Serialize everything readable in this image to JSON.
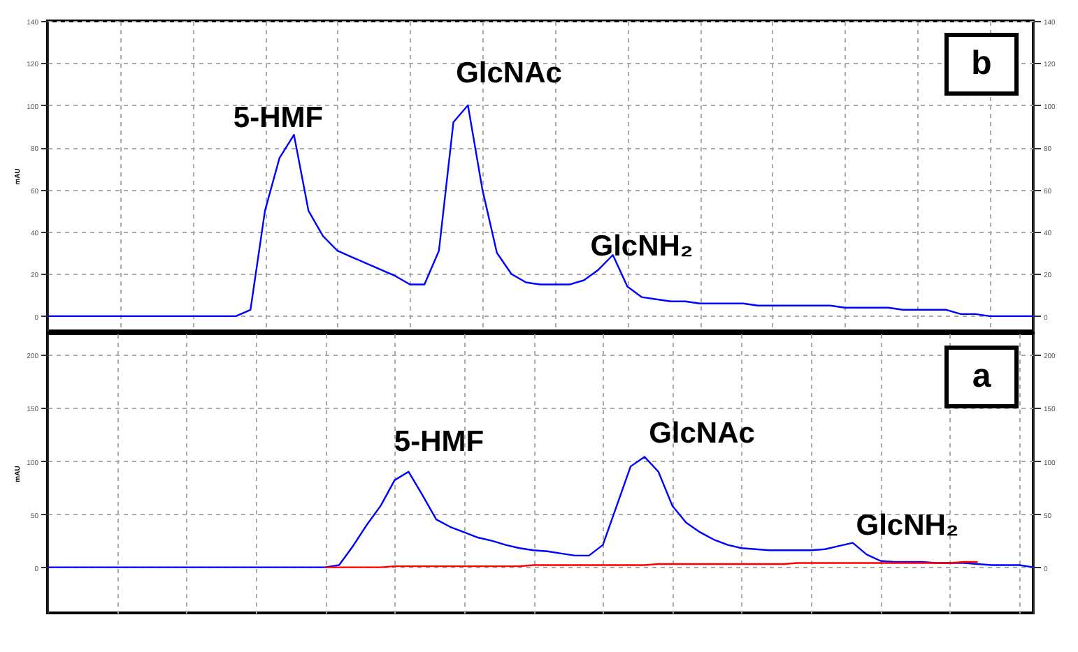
{
  "chart_data": [
    {
      "type": "line",
      "title": "b",
      "ylabel": "mAU",
      "categories": [
        null,
        null,
        null,
        null,
        null,
        null,
        null,
        null,
        null,
        null,
        null,
        null,
        null,
        null,
        null,
        null,
        null,
        null,
        null,
        null,
        null,
        null,
        null,
        null,
        null,
        null,
        null,
        null,
        null,
        null,
        null,
        null,
        null,
        null,
        null,
        null,
        null,
        null,
        null,
        null,
        null,
        null,
        null,
        null,
        null,
        null,
        null,
        null,
        null,
        null,
        null,
        null,
        null,
        null,
        null,
        null,
        null,
        null,
        null,
        null,
        null,
        null,
        null,
        null,
        null,
        null,
        null,
        null,
        null
      ],
      "series": [
        {
          "color": "#0000ff",
          "values": [
            0,
            0,
            0,
            0,
            0,
            0,
            0,
            0,
            0,
            0,
            0,
            0,
            0,
            0,
            3,
            50,
            75,
            86,
            50,
            38,
            31,
            28,
            25,
            22,
            19,
            15,
            15,
            31,
            92,
            100,
            60,
            30,
            20,
            16,
            15,
            15,
            15,
            17,
            22,
            29,
            14,
            9,
            8,
            7,
            7,
            6,
            6,
            6,
            6,
            5,
            5,
            5,
            5,
            5,
            5,
            4,
            4,
            4,
            4,
            3,
            3,
            3,
            3,
            1,
            1,
            0,
            0,
            0,
            0
          ]
        }
      ],
      "ylim": [
        -7,
        140
      ],
      "yticks": [
        0,
        20,
        40,
        60,
        80,
        100,
        120,
        140
      ],
      "y2lim": [
        -7,
        140
      ],
      "y2ticks": [
        0,
        20,
        40,
        60,
        80,
        100,
        120,
        140
      ],
      "grid": true,
      "tick_labels": "y",
      "annotations": [
        "5-HMF",
        "GlcNAc",
        "GlcNH₂"
      ]
    },
    {
      "type": "line",
      "title": "a",
      "ylabel": "mAU",
      "categories": [
        null,
        null,
        null,
        null,
        null,
        null,
        null,
        null,
        null,
        null,
        null,
        null,
        null,
        null,
        null,
        null,
        null,
        null,
        null,
        null,
        null,
        null,
        null,
        null,
        null,
        null,
        null,
        null,
        null,
        null,
        null,
        null,
        null,
        null,
        null,
        null,
        null,
        null,
        null,
        null,
        null,
        null,
        null,
        null,
        null,
        null,
        null,
        null,
        null,
        null,
        null,
        null,
        null,
        null,
        null,
        null,
        null,
        null,
        null,
        null,
        null,
        null,
        null,
        null,
        null,
        null,
        null,
        null,
        null,
        null,
        null,
        null
      ],
      "series": [
        {
          "color": "#0000ff",
          "values": [
            0,
            0,
            0,
            0,
            0,
            0,
            0,
            0,
            0,
            0,
            0,
            0,
            0,
            0,
            0,
            0,
            0,
            0,
            0,
            0,
            0,
            2,
            20,
            40,
            58,
            82,
            90,
            68,
            45,
            38,
            33,
            28,
            25,
            21,
            18,
            16,
            15,
            13,
            11,
            11,
            21,
            58,
            95,
            104,
            90,
            58,
            42,
            33,
            26,
            21,
            18,
            17,
            16,
            16,
            16,
            16,
            17,
            20,
            23,
            12,
            6,
            5,
            5,
            5,
            4,
            4,
            4,
            3,
            2,
            2,
            2,
            0
          ]
        },
        {
          "color": "#ff0000",
          "values": [
            null,
            null,
            null,
            null,
            null,
            null,
            null,
            null,
            null,
            null,
            null,
            null,
            null,
            null,
            null,
            null,
            null,
            null,
            null,
            null,
            0,
            0,
            0,
            0,
            0,
            1,
            1,
            1,
            1,
            1,
            1,
            1,
            1,
            1,
            1,
            2,
            2,
            2,
            2,
            2,
            2,
            2,
            2,
            2,
            3,
            3,
            3,
            3,
            3,
            3,
            3,
            3,
            3,
            3,
            4,
            4,
            4,
            4,
            4,
            4,
            4,
            4,
            4,
            4,
            4,
            4,
            5,
            5,
            null,
            null,
            null,
            null
          ]
        }
      ],
      "ylim": [
        -43,
        220
      ],
      "yticks": [
        0,
        50,
        100,
        150,
        200
      ],
      "y2lim": [
        -43,
        220
      ],
      "y2ticks": [
        0,
        50,
        100,
        150,
        200
      ],
      "grid": true,
      "tick_labels": "y",
      "annotations": [
        "5-HMF",
        "GlcNAc",
        "GlcNH₂"
      ]
    }
  ]
}
